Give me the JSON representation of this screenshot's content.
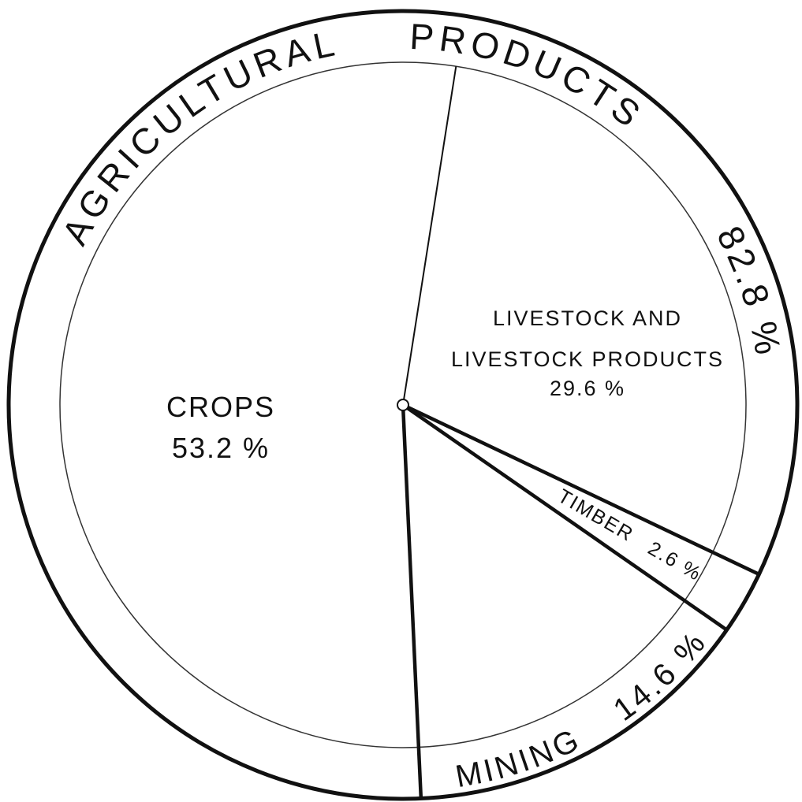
{
  "chart_data": {
    "type": "pie",
    "categories": [
      "LIVESTOCK AND\nLIVESTOCK PRODUCTS",
      "TIMBER",
      "MINING",
      "CROPS"
    ],
    "values": [
      29.6,
      2.6,
      14.6,
      53.2
    ],
    "value_labels": [
      "29.6 %",
      "2.6 %",
      "14.6 %",
      "53.2 %"
    ],
    "groups": [
      {
        "name": "AGRICULTURAL PRODUCTS",
        "value": 82.8,
        "value_label": "82.8 %"
      }
    ],
    "color": "#ffffff"
  }
}
